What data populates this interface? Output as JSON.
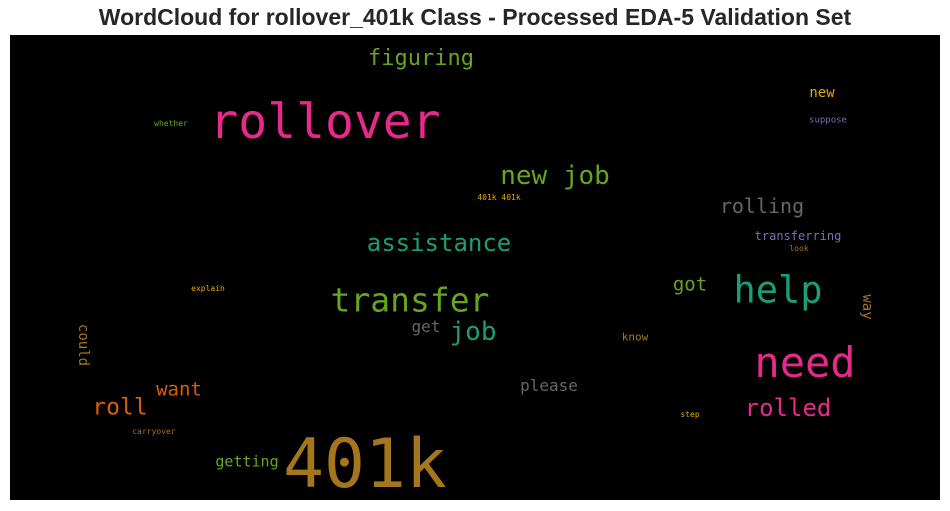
{
  "title": "WordCloud for rollover_401k Class - Processed EDA-5 Validation Set",
  "chart_data": {
    "type": "wordcloud",
    "background": "#000000",
    "words": [
      {
        "text": "rollover",
        "color": "#e7298a"
      },
      {
        "text": "401k",
        "color": "#a6761d"
      },
      {
        "text": "need",
        "color": "#e7298a"
      },
      {
        "text": "transfer",
        "color": "#66a61e"
      },
      {
        "text": "help",
        "color": "#1b9e77"
      },
      {
        "text": "new job",
        "color": "#66a61e"
      },
      {
        "text": "assistance",
        "color": "#1b9e77"
      },
      {
        "text": "job",
        "color": "#1b9e77"
      },
      {
        "text": "figuring",
        "color": "#66a61e"
      },
      {
        "text": "rolled",
        "color": "#e7298a"
      },
      {
        "text": "roll",
        "color": "#d95f02"
      },
      {
        "text": "rolling",
        "color": "#666666"
      },
      {
        "text": "want",
        "color": "#d95f02"
      },
      {
        "text": "got",
        "color": "#66a61e"
      },
      {
        "text": "please",
        "color": "#666666"
      },
      {
        "text": "getting",
        "color": "#66a61e"
      },
      {
        "text": "get",
        "color": "#666666"
      },
      {
        "text": "new",
        "color": "#e6ab02"
      },
      {
        "text": "transferring",
        "color": "#7570b3"
      },
      {
        "text": "could",
        "color": "#a6761d"
      },
      {
        "text": "way",
        "color": "#a6761d"
      },
      {
        "text": "know",
        "color": "#a6761d"
      },
      {
        "text": "suppose",
        "color": "#7570b3"
      },
      {
        "text": "whether",
        "color": "#66a61e"
      },
      {
        "text": "401k 401k",
        "color": "#e6ab02"
      },
      {
        "text": "look",
        "color": "#a6761d"
      },
      {
        "text": "explain",
        "color": "#e6ab02"
      },
      {
        "text": "carryover",
        "color": "#a6761d"
      },
      {
        "text": "step",
        "color": "#e6ab02"
      }
    ]
  }
}
